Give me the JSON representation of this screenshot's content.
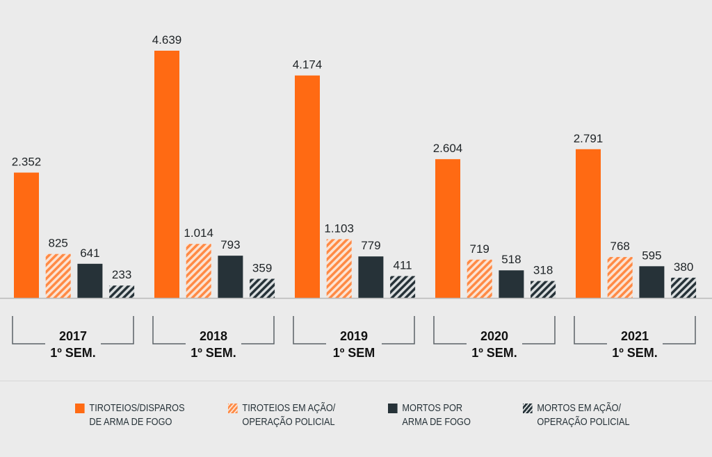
{
  "chart_data": {
    "type": "bar",
    "categories": [
      {
        "year": "2017",
        "period": "1º SEM."
      },
      {
        "year": "2018",
        "period": "1º SEM."
      },
      {
        "year": "2019",
        "period": "1º SEM"
      },
      {
        "year": "2020",
        "period": "1º SEM."
      },
      {
        "year": "2021",
        "period": "1º SEM."
      }
    ],
    "series": [
      {
        "name": "TIROTEIOS/DISPAROS DE ARMA DE FOGO",
        "line1": "TIROTEIOS/DISPAROS",
        "line2": "DE ARMA DE FOGO",
        "color": "#ff6a13",
        "hatched": false,
        "values": [
          2352,
          4639,
          4174,
          2604,
          2791
        ],
        "labels": [
          "2.352",
          "4.639",
          "4.174",
          "2.604",
          "2.791"
        ]
      },
      {
        "name": "TIROTEIOS EM AÇÃO/OPERAÇÃO POLICIAL",
        "line1": "TIROTEIOS EM AÇÃO/",
        "line2": "OPERAÇÃO POLICIAL",
        "color": "#ff6a13",
        "hatched": true,
        "values": [
          825,
          1014,
          1103,
          719,
          768
        ],
        "labels": [
          "825",
          "1.014",
          "1.103",
          "719",
          "768"
        ]
      },
      {
        "name": "MORTOS POR ARMA DE FOGO",
        "line1": "MORTOS POR",
        "line2": "ARMA DE FOGO",
        "color": "#263238",
        "hatched": false,
        "values": [
          641,
          793,
          779,
          518,
          595
        ],
        "labels": [
          "641",
          "793",
          "779",
          "518",
          "595"
        ]
      },
      {
        "name": "MORTOS EM AÇÃO/OPERAÇÃO POLICIAL",
        "line1": "MORTOS EM AÇÃO/",
        "line2": "OPERAÇÃO POLICIAL",
        "color": "#263238",
        "hatched": true,
        "values": [
          233,
          359,
          411,
          318,
          380
        ],
        "labels": [
          "233",
          "359",
          "411",
          "318",
          "380"
        ]
      }
    ],
    "ylim": [
      0,
      4700
    ],
    "legend": "bottom",
    "grid": false
  }
}
